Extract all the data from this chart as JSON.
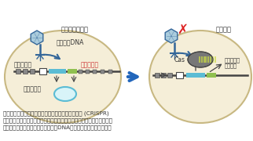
{
  "bg_color": "#ffffff",
  "title_left": "外来配列の記録",
  "title_right": "感染阻害",
  "label_phage": "ファージDNA",
  "label_host": "宿主ゲノム",
  "label_spacer_red": "スペーサー",
  "label_plasmid": "プラスミド",
  "label_cas": "Cas",
  "label_spacer2": "スペーサー",
  "label_transcript": "転写産物",
  "caption_line1": "ラン藻や古細菌が有するウイルスに対する免疫機構 (CRISPR)",
  "caption_line2": "左：ファージ・プラスミド配列の一部をスペーサーとしてゲノムに獲得",
  "caption_line3": "右：スペーサー配列と一致する外来DNA分子を切断し，感染を阻害",
  "ellipse_edge": "#c8b882",
  "ellipse_face": "#f5eed8",
  "dna_dark": "#444444",
  "repeat_color": "#888888",
  "spacer_cyan": "#5bbcd4",
  "spacer_green": "#90c050",
  "phage_dark": "#336699",
  "phage_light": "#6699cc",
  "phage_body_face": "#aaccdd",
  "cas_face": "#888888",
  "cas_stripe": "#ccdd44",
  "arrow_blue": "#2266bb",
  "cross_red": "#dd2222",
  "text_dark": "#333333",
  "spacer_red": "#cc3333",
  "fs_title": 6.0,
  "fs_label": 5.5,
  "fs_small": 4.8,
  "fs_caption": 5.2
}
